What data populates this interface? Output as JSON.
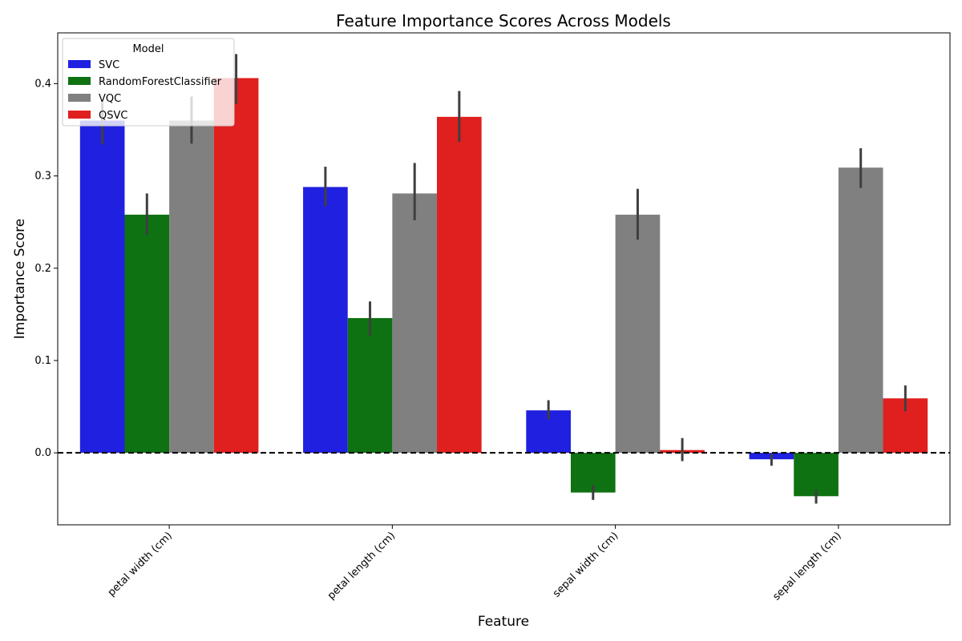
{
  "chart_data": {
    "type": "bar",
    "title": "Feature Importance Scores Across Models",
    "xlabel": "Feature",
    "ylabel": "Importance Score",
    "categories": [
      "petal width (cm)",
      "petal length (cm)",
      "sepal width (cm)",
      "sepal length (cm)"
    ],
    "ylim": [
      -0.078,
      0.455
    ],
    "yticks": [
      "0.0",
      "0.1",
      "0.2",
      "0.3",
      "0.4"
    ],
    "legend": {
      "title": "Model",
      "placement": "top-left"
    },
    "reference_line": {
      "y": 0,
      "style": "dashed",
      "color": "#000000"
    },
    "grid": false,
    "series": [
      {
        "name": "SVC",
        "color": "#2020e0",
        "values": [
          0.36,
          0.288,
          0.046,
          -0.007
        ],
        "err_low": [
          0.334,
          0.267,
          0.036,
          -0.014
        ],
        "err_high": [
          0.38,
          0.31,
          0.057,
          -0.001
        ]
      },
      {
        "name": "RandomForestClassifier",
        "color": "#0e7112",
        "values": [
          0.258,
          0.146,
          -0.043,
          -0.047
        ],
        "err_low": [
          0.236,
          0.127,
          -0.051,
          -0.055
        ],
        "err_high": [
          0.281,
          0.164,
          -0.035,
          -0.04
        ]
      },
      {
        "name": "VQC",
        "color": "#808080",
        "values": [
          0.36,
          0.281,
          0.258,
          0.309
        ],
        "err_low": [
          0.335,
          0.252,
          0.231,
          0.287
        ],
        "err_high": [
          0.386,
          0.314,
          0.286,
          0.33
        ]
      },
      {
        "name": "QSVC",
        "color": "#e01f1f",
        "values": [
          0.406,
          0.364,
          0.003,
          0.059
        ],
        "err_low": [
          0.378,
          0.337,
          -0.009,
          0.045
        ],
        "err_high": [
          0.432,
          0.392,
          0.016,
          0.073
        ]
      }
    ]
  }
}
